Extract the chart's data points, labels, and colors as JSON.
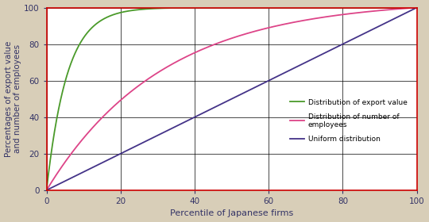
{
  "title": "",
  "xlabel": "Percentile of Japanese firms",
  "ylabel": "Percentages of export value\nand number of employees",
  "xlim": [
    0,
    100
  ],
  "ylim": [
    0,
    100
  ],
  "xticks": [
    0,
    20,
    40,
    60,
    80,
    100
  ],
  "yticks": [
    0,
    20,
    40,
    60,
    80,
    100
  ],
  "figure_bg_color": "#d8ceb8",
  "plot_bg_color": "#ffffff",
  "grid_color": "#000000",
  "border_color_red": "#cc0000",
  "export_value_color": "#4a9a2a",
  "employees_color": "#dd4488",
  "uniform_color": "#443388",
  "legend_labels": [
    "Distribution of export value",
    "Distribution of number of\nemployees",
    "Uniform distribution"
  ],
  "k_export": 18.0,
  "k_employees": 3.2
}
